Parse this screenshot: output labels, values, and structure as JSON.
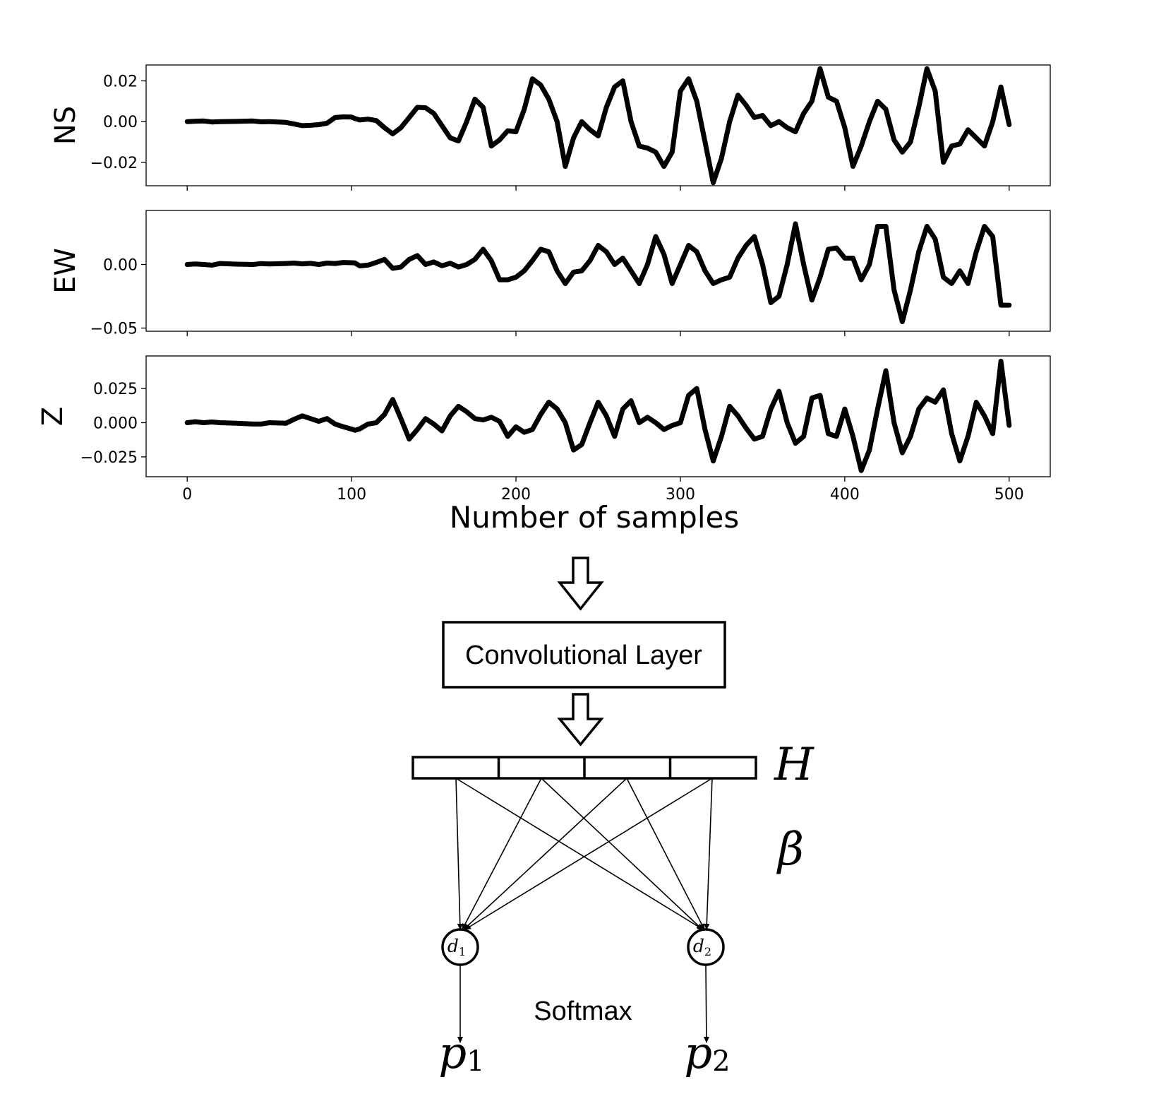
{
  "chart_data": [
    {
      "type": "line",
      "ylabel": "NS",
      "xlim": [
        -25,
        525
      ],
      "ylim": [
        -0.0315,
        0.0278
      ],
      "yticks": [
        "0.02",
        "0.00",
        "−0.02"
      ],
      "ytick_values": [
        0.02,
        0.0,
        -0.02
      ],
      "show_xtick_labels": false,
      "series": [
        {
          "x": [
            0,
            5,
            10,
            15,
            20,
            30,
            40,
            45,
            50,
            60,
            65,
            70,
            75,
            80,
            85,
            90,
            95,
            100,
            102,
            105,
            110,
            115,
            120,
            125,
            130,
            135,
            140,
            145,
            150,
            155,
            160,
            165,
            170,
            175,
            180,
            185,
            190,
            195,
            200,
            205,
            210,
            215,
            220,
            225,
            230,
            235,
            240,
            245,
            250,
            255,
            260,
            265,
            270,
            275,
            280,
            285,
            290,
            295,
            300,
            305,
            310,
            315,
            320,
            325,
            330,
            335,
            340,
            345,
            350,
            355,
            360,
            365,
            370,
            375,
            380,
            385,
            390,
            395,
            400,
            405,
            410,
            415,
            420,
            425,
            430,
            435,
            440,
            445,
            450,
            455,
            460,
            465,
            470,
            475,
            480,
            485,
            490,
            495,
            500
          ],
          "values": [
            0.0,
            0.0002,
            0.0003,
            -0.0002,
            0.0,
            0.0001,
            0.0003,
            -0.0001,
            0.0,
            -0.0004,
            -0.0012,
            -0.002,
            -0.0018,
            -0.0015,
            -0.0008,
            0.002,
            0.0023,
            0.0022,
            0.0015,
            0.0008,
            0.0012,
            0.0005,
            -0.003,
            -0.006,
            -0.003,
            0.002,
            0.007,
            0.0068,
            0.004,
            -0.002,
            -0.008,
            -0.0095,
            0.0,
            0.011,
            0.007,
            -0.012,
            -0.009,
            -0.0045,
            -0.005,
            0.006,
            0.021,
            0.018,
            0.011,
            0.0,
            -0.022,
            -0.008,
            0.0,
            -0.004,
            -0.007,
            0.007,
            0.017,
            0.02,
            0.0,
            -0.012,
            -0.013,
            -0.015,
            -0.022,
            -0.015,
            0.015,
            0.021,
            0.01,
            -0.01,
            -0.03,
            -0.018,
            0.0,
            0.013,
            0.008,
            0.002,
            0.003,
            -0.002,
            0.0,
            -0.003,
            -0.005,
            0.004,
            0.01,
            0.026,
            0.012,
            0.01,
            -0.003,
            -0.022,
            -0.012,
            0.0,
            0.01,
            0.006,
            -0.009,
            -0.015,
            -0.01,
            0.007,
            0.026,
            0.015,
            -0.02,
            -0.012,
            -0.011,
            -0.004,
            -0.008,
            -0.012,
            0.0,
            0.017,
            -0.0015
          ]
        }
      ]
    },
    {
      "type": "line",
      "ylabel": "EW",
      "xlim": [
        -25,
        525
      ],
      "ylim": [
        -0.0525,
        0.0425
      ],
      "yticks": [
        "0.00",
        "−0.05"
      ],
      "ytick_values": [
        0.0,
        -0.05
      ],
      "show_xtick_labels": false,
      "series": [
        {
          "x": [
            0,
            5,
            10,
            15,
            20,
            30,
            40,
            45,
            50,
            60,
            65,
            70,
            75,
            80,
            85,
            90,
            95,
            100,
            102,
            105,
            110,
            115,
            120,
            125,
            130,
            135,
            140,
            145,
            150,
            155,
            160,
            165,
            170,
            175,
            180,
            185,
            190,
            195,
            200,
            205,
            210,
            215,
            220,
            225,
            230,
            235,
            240,
            245,
            250,
            255,
            260,
            265,
            270,
            275,
            280,
            285,
            290,
            295,
            300,
            305,
            310,
            315,
            320,
            325,
            330,
            335,
            340,
            345,
            350,
            355,
            360,
            365,
            370,
            375,
            380,
            385,
            390,
            395,
            400,
            405,
            410,
            415,
            420,
            425,
            430,
            435,
            440,
            445,
            450,
            455,
            460,
            465,
            470,
            475,
            480,
            485,
            490,
            495,
            500
          ],
          "values": [
            0.0,
            0.0004,
            0.0,
            -0.0005,
            0.0008,
            0.0003,
            0.0,
            0.0007,
            0.0004,
            0.0008,
            0.0011,
            0.0005,
            0.0009,
            0.0,
            0.0011,
            0.0008,
            0.0016,
            0.0014,
            0.0012,
            -0.0011,
            -0.0005,
            0.0016,
            0.004,
            -0.003,
            -0.002,
            0.004,
            0.007,
            0.0,
            0.002,
            -0.001,
            0.001,
            -0.002,
            0.0,
            0.004,
            0.012,
            0.003,
            -0.012,
            -0.012,
            -0.01,
            -0.005,
            0.003,
            0.012,
            0.01,
            -0.005,
            -0.015,
            -0.006,
            -0.005,
            0.003,
            0.015,
            0.01,
            0.0,
            0.005,
            -0.005,
            -0.015,
            0.0,
            0.022,
            0.008,
            -0.015,
            0.0,
            0.015,
            0.01,
            -0.005,
            -0.015,
            -0.012,
            -0.01,
            0.005,
            0.015,
            0.022,
            0.0,
            -0.03,
            -0.025,
            0.0,
            0.032,
            0.0,
            -0.028,
            -0.01,
            0.012,
            0.013,
            0.005,
            0.005,
            -0.012,
            0.0,
            0.03,
            0.03,
            -0.02,
            -0.045,
            -0.02,
            0.01,
            0.03,
            0.02,
            -0.01,
            -0.015,
            -0.005,
            -0.015,
            0.01,
            0.03,
            0.022,
            -0.032,
            -0.032
          ]
        }
      ]
    },
    {
      "type": "line",
      "ylabel": "Z",
      "xlabel": "Number of samples",
      "xlim": [
        -25,
        525
      ],
      "ylim": [
        -0.0395,
        0.0488
      ],
      "xticks": [
        "0",
        "100",
        "200",
        "300",
        "400",
        "500"
      ],
      "xtick_values": [
        0,
        100,
        200,
        300,
        400,
        500
      ],
      "yticks": [
        "0.025",
        "0.000",
        "−0.025"
      ],
      "ytick_values": [
        0.025,
        0.0,
        -0.025
      ],
      "show_xtick_labels": true,
      "series": [
        {
          "x": [
            0,
            5,
            10,
            15,
            20,
            30,
            40,
            45,
            50,
            60,
            65,
            70,
            75,
            80,
            85,
            90,
            95,
            100,
            102,
            105,
            110,
            115,
            120,
            125,
            130,
            135,
            140,
            145,
            150,
            155,
            160,
            165,
            170,
            175,
            180,
            185,
            190,
            195,
            200,
            205,
            210,
            215,
            220,
            225,
            230,
            235,
            240,
            245,
            250,
            255,
            260,
            265,
            270,
            275,
            280,
            285,
            290,
            295,
            300,
            305,
            310,
            315,
            320,
            325,
            330,
            335,
            340,
            345,
            350,
            355,
            360,
            365,
            370,
            375,
            380,
            385,
            390,
            395,
            400,
            405,
            410,
            415,
            420,
            425,
            430,
            435,
            440,
            445,
            450,
            455,
            460,
            465,
            470,
            475,
            480,
            485,
            490,
            495,
            500
          ],
          "values": [
            0.0,
            0.0007,
            0.0,
            0.0005,
            0.0,
            -0.0004,
            -0.001,
            -0.001,
            0.0,
            -0.0004,
            0.0025,
            0.005,
            0.003,
            0.001,
            0.003,
            -0.001,
            -0.003,
            -0.0047,
            -0.0055,
            -0.0045,
            -0.001,
            0.0,
            0.006,
            0.017,
            0.003,
            -0.012,
            -0.005,
            0.003,
            -0.001,
            -0.006,
            0.005,
            0.012,
            0.008,
            0.003,
            0.002,
            0.004,
            0.001,
            -0.01,
            -0.003,
            -0.007,
            -0.005,
            0.006,
            0.015,
            0.01,
            0.0,
            -0.02,
            -0.016,
            0.0,
            0.015,
            0.005,
            -0.01,
            0.01,
            0.016,
            0.0,
            0.004,
            0.0,
            -0.005,
            -0.002,
            0.0,
            0.02,
            0.025,
            -0.005,
            -0.028,
            -0.01,
            0.012,
            0.005,
            -0.004,
            -0.012,
            -0.01,
            0.01,
            0.023,
            0.0,
            -0.015,
            -0.01,
            0.018,
            0.02,
            -0.008,
            -0.01,
            0.01,
            -0.01,
            -0.035,
            -0.02,
            0.01,
            0.038,
            0.0,
            -0.022,
            -0.01,
            0.01,
            0.018,
            0.015,
            0.024,
            -0.008,
            -0.028,
            -0.01,
            0.015,
            0.005,
            -0.008,
            0.045,
            -0.002
          ]
        }
      ]
    }
  ],
  "diagram": {
    "conv_layer_label": "Convolutional Layer",
    "h_label": "H",
    "beta_label": "β",
    "nodes": [
      {
        "var": "d",
        "sub": "1"
      },
      {
        "var": "d",
        "sub": "2"
      }
    ],
    "outputs": [
      {
        "var": "p",
        "sub": "1"
      },
      {
        "var": "p",
        "sub": "2"
      }
    ],
    "softmax_label": "Softmax",
    "h_cells": 4
  }
}
